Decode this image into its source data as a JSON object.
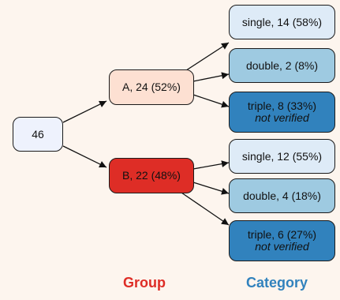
{
  "root": {
    "label": "46",
    "color": "#eef2fd"
  },
  "groups": [
    {
      "label": "A, 24 (52%)",
      "color": "#fde0d2"
    },
    {
      "label": "B, 22 (48%)",
      "color": "#de2d26"
    }
  ],
  "categories": [
    {
      "label": "single, 14 (58%)",
      "note": "",
      "color": "#deebf7"
    },
    {
      "label": "double, 2 (8%)",
      "note": "",
      "color": "#9ecae1"
    },
    {
      "label": "triple, 8 (33%)",
      "note": "not verified",
      "color": "#3182bd"
    },
    {
      "label": "single, 12 (55%)",
      "note": "",
      "color": "#deebf7"
    },
    {
      "label": "double, 4 (18%)",
      "note": "",
      "color": "#9ecae1"
    },
    {
      "label": "triple, 6 (27%)",
      "note": "not verified",
      "color": "#3182bd"
    }
  ],
  "legend": {
    "group": "Group",
    "group_color": "#de2d26",
    "category": "Category",
    "category_color": "#3182bd"
  }
}
